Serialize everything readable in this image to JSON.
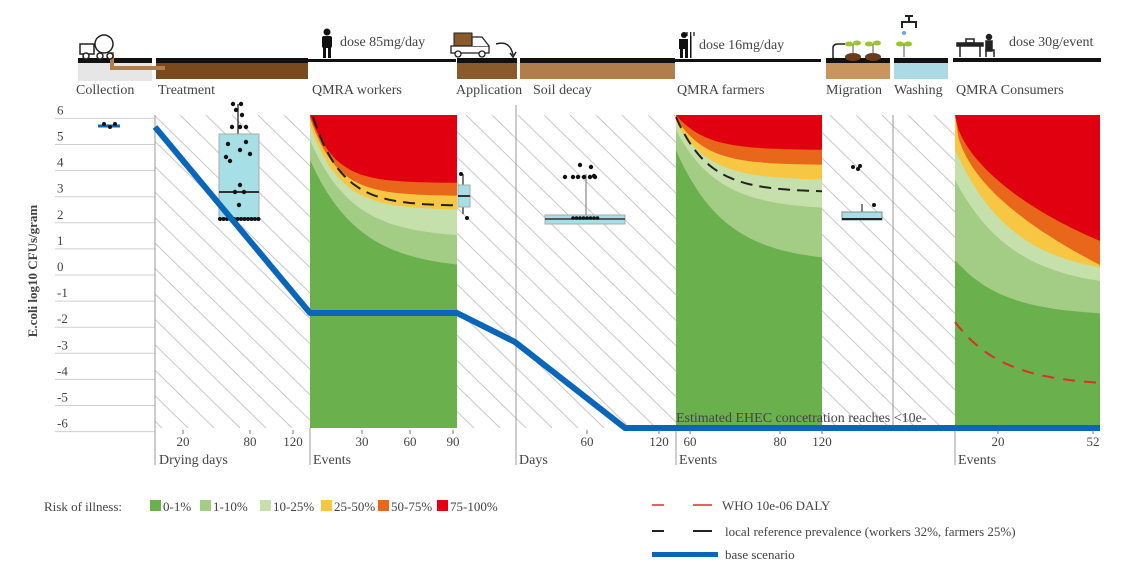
{
  "chart_data": {
    "type": "area",
    "ylabel": "E.coli log10 CFUs/gram",
    "ylim": [
      -6,
      6
    ],
    "yticks": [
      "6",
      "5",
      "4",
      "3",
      "2",
      "1",
      "0",
      "-1",
      "-2",
      "-3",
      "-4",
      "-5",
      "-6"
    ],
    "stages": [
      {
        "name": "Collection",
        "color": "#e8e8e8"
      },
      {
        "name": "Treatment",
        "color": "#7a4a1e"
      },
      {
        "name": "QMRA workers",
        "dose": "dose 85mg/day"
      },
      {
        "name": "Application",
        "color": "#8b5a2b"
      },
      {
        "name": "Soil decay",
        "color": "#b07d4b"
      },
      {
        "name": "QMRA farmers",
        "dose": "dose 16mg/day"
      },
      {
        "name": "Migration",
        "color": "#c9955f"
      },
      {
        "name": "Washing",
        "color": "#add8e6"
      },
      {
        "name": "QMRA Consumers",
        "dose": "dose 30g/event"
      }
    ],
    "x_axes": [
      {
        "label": "Drying days",
        "ticks": [
          "20",
          "80",
          "120"
        ]
      },
      {
        "label": "Events",
        "ticks": [
          "30",
          "60",
          "90"
        ]
      },
      {
        "label": "Days",
        "ticks": [
          "60",
          "120"
        ]
      },
      {
        "label": "Events",
        "ticks": [
          "60",
          "80",
          "120"
        ]
      },
      {
        "label": "Events",
        "ticks": [
          "20",
          "52"
        ]
      }
    ],
    "base_scenario": {
      "name": "base scenario",
      "points": [
        {
          "stage": "Treatment start",
          "y": 5.5
        },
        {
          "stage": "Treatment end",
          "y": -1.6
        },
        {
          "stage": "QMRA workers end",
          "y": -1.6
        },
        {
          "stage": "Application end",
          "y": -2.7
        },
        {
          "stage": "Soil decay ~90 days",
          "y": -6
        },
        {
          "stage": "end",
          "y": -6
        }
      ]
    },
    "annotation": "Estimated EHEC concetration reaches <10e-",
    "risk_legend_title": "Risk of illness:",
    "risk_classes": [
      {
        "label": "0-1%",
        "color": "#6ab04c"
      },
      {
        "label": "1-10%",
        "color": "#a3cd85"
      },
      {
        "label": "10-25%",
        "color": "#c6e0ab"
      },
      {
        "label": "25-50%",
        "color": "#f7c744"
      },
      {
        "label": "50-75%",
        "color": "#e8671a"
      },
      {
        "label": "75-100%",
        "color": "#e0000f"
      }
    ],
    "line_legend": [
      {
        "label": "WHO 10e-06 DALY",
        "color": "#d9302a",
        "style": "dashed"
      },
      {
        "label": "local reference prevalence (workers 32%, farmers 25%)",
        "color": "#222222",
        "style": "dashed"
      },
      {
        "label": "base scenario",
        "color": "#0a66b8",
        "style": "solid"
      }
    ],
    "boxplots": [
      {
        "stage": "Collection",
        "median": 5.6,
        "q1": 5.55,
        "q3": 5.65
      },
      {
        "stage": "Treatment",
        "median": 3.0,
        "q1": 2.0,
        "q3": 5.2,
        "max": 6.2
      },
      {
        "stage": "Application",
        "median": 2.9,
        "q1": 2.5,
        "q3": 3.3
      },
      {
        "stage": "Soil decay",
        "median": 2.0,
        "q1": 1.9,
        "q3": 2.1,
        "max": 4.0
      },
      {
        "stage": "Migration",
        "median": 2.1,
        "q1": 2.0,
        "q3": 2.3
      }
    ]
  }
}
